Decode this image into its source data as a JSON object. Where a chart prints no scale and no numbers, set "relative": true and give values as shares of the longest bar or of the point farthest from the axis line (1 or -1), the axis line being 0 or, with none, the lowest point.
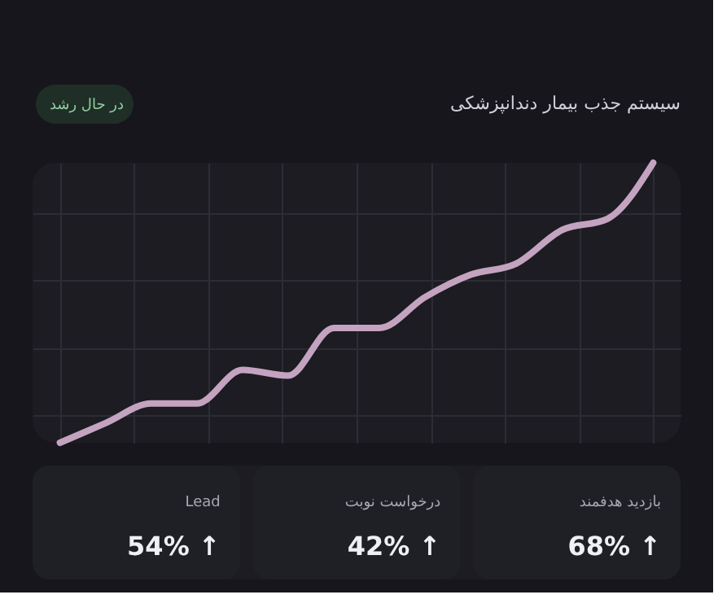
{
  "chart_data": [
    {
      "type": "line",
      "title": "سیستم جذب بیمار دندانپزشکی",
      "annotations": [
        "در حال رشد"
      ],
      "relative": true,
      "grid": true,
      "tick_labels": false,
      "categories": [
        null,
        null,
        null,
        null,
        null,
        null,
        null,
        null,
        null,
        null,
        null,
        null,
        null,
        null
      ],
      "series": [
        {
          "color": "#c4a3c0",
          "values": [
            0,
            0.07,
            0.14,
            0.14,
            0.26,
            0.24,
            0.41,
            0.41,
            0.52,
            0.6,
            0.64,
            0.76,
            0.8,
            1
          ]
        }
      ]
    },
    {
      "type": "other",
      "categories": [
        "Lead",
        "درخواست نوبت",
        "بازدید هدفمند"
      ],
      "value_labels": [
        "54% ↑",
        "42% ↑",
        "68% ↑"
      ]
    }
  ]
}
